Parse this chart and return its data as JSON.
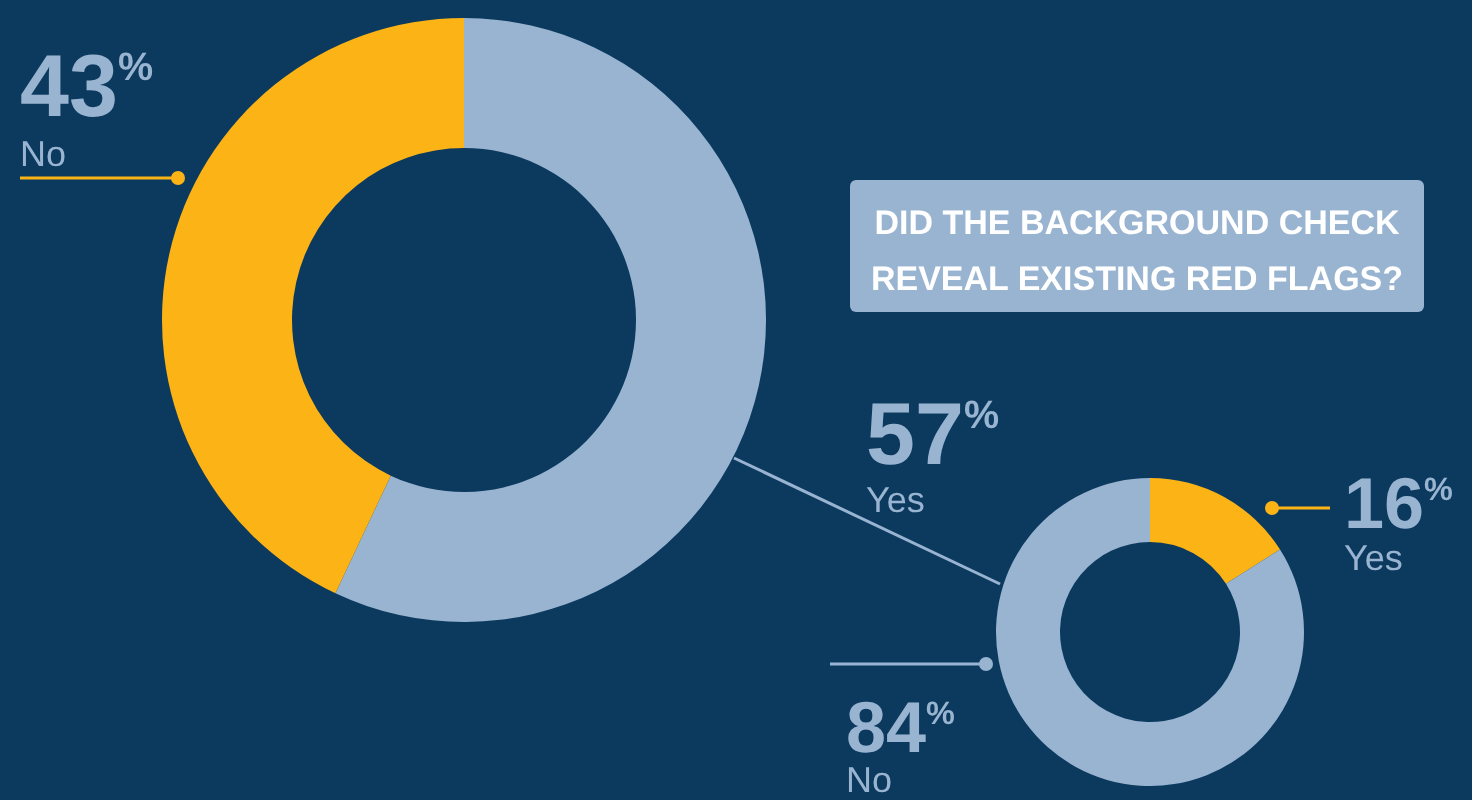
{
  "chart_data": [
    {
      "type": "donut",
      "title": "DID THE BACKGROUND CHECK REVEAL EXISTING RED FLAGS?",
      "categories": [
        "Yes",
        "No"
      ],
      "values": [
        57,
        43
      ],
      "colors": [
        "#99b4d1",
        "#fcb316"
      ],
      "value_labels": [
        "57$^{%}$",
        "43$^{%}$"
      ]
    },
    {
      "type": "donut",
      "categories": [
        "Yes",
        "No"
      ],
      "values": [
        16,
        84
      ],
      "colors": [
        "#fcb316",
        "#99b4d1"
      ],
      "value_labels": [
        "16$^{%}$",
        "84$^{%}$"
      ]
    }
  ]
}
